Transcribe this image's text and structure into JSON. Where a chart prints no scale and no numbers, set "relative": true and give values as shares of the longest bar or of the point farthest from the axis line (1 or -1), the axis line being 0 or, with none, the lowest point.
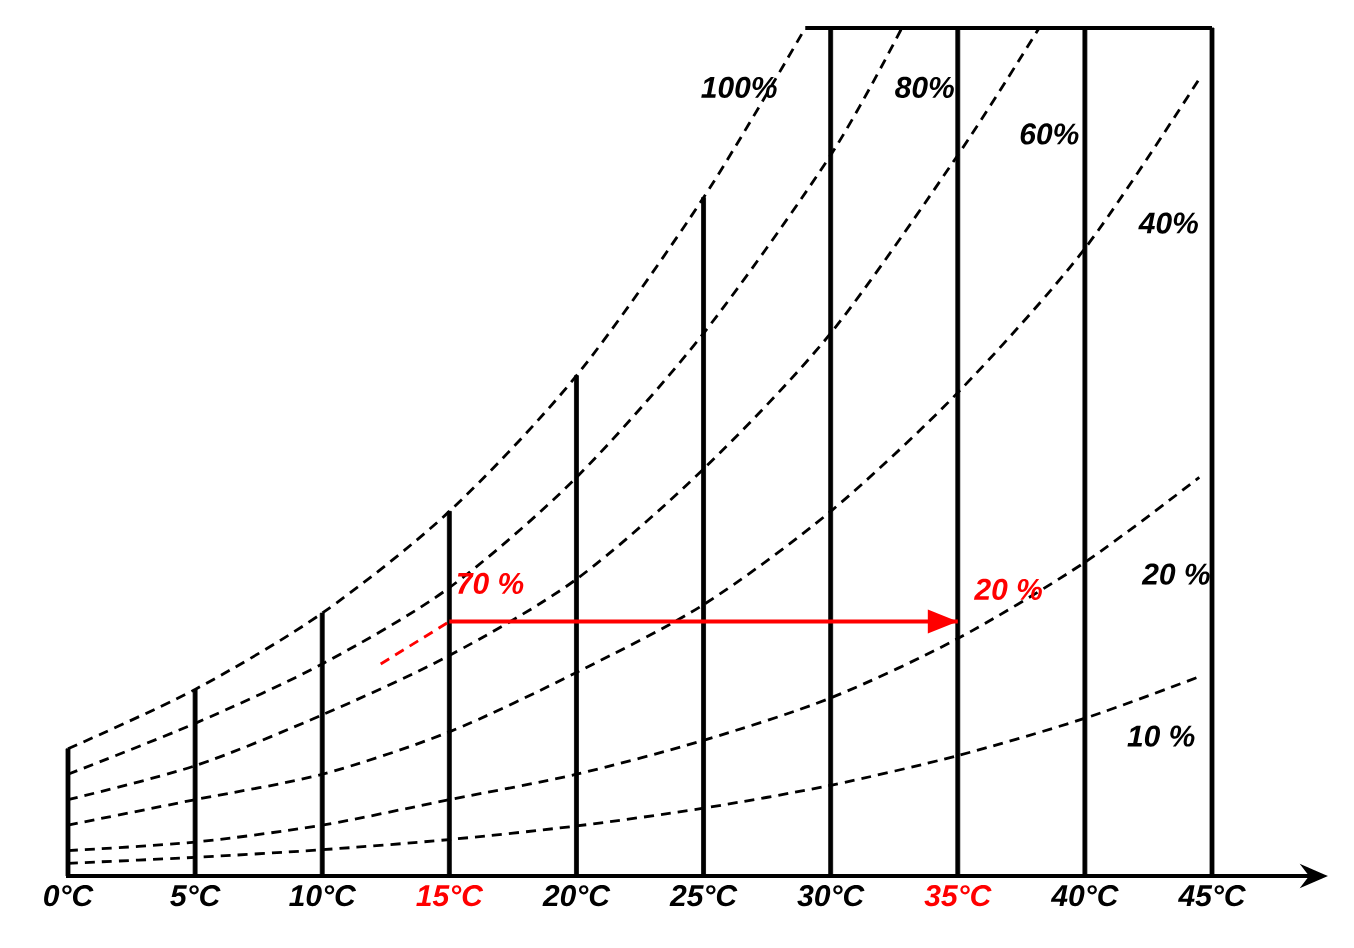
{
  "chart_data": {
    "type": "line",
    "relative": true,
    "xlim": [
      0,
      45
    ],
    "xticks": [
      {
        "value": 0,
        "label": "0°C"
      },
      {
        "value": 5,
        "label": "5°C"
      },
      {
        "value": 10,
        "label": "10°C"
      },
      {
        "value": 15,
        "label": "15°C"
      },
      {
        "value": 20,
        "label": "20°C"
      },
      {
        "value": 25,
        "label": "25°C"
      },
      {
        "value": 30,
        "label": "30°C"
      },
      {
        "value": 35,
        "label": "35°C"
      },
      {
        "value": 40,
        "label": "40°C"
      },
      {
        "value": 45,
        "label": "45°C"
      }
    ],
    "series": [
      {
        "type": "bar",
        "color": "#000000",
        "x": [
          0,
          5,
          10,
          15,
          20,
          25,
          30,
          35,
          40,
          45
        ],
        "values": [
          0.15,
          0.22,
          0.31,
          0.43,
          0.59,
          0.8,
          1,
          1,
          1,
          1
        ]
      },
      {
        "name": "100%",
        "color": "#000000",
        "line_style": "dashed",
        "x": [
          0,
          5,
          10,
          15,
          20,
          25,
          29
        ],
        "values": [
          0.15,
          0.22,
          0.31,
          0.43,
          0.59,
          0.8,
          1
        ]
      },
      {
        "name": "80%",
        "color": "#000000",
        "line_style": "dashed",
        "x": [
          0,
          5,
          10,
          15,
          20,
          25,
          30,
          32.8
        ],
        "values": [
          0.12,
          0.18,
          0.25,
          0.34,
          0.47,
          0.64,
          0.85,
          1
        ]
      },
      {
        "name": "60%",
        "color": "#000000",
        "line_style": "dashed",
        "x": [
          0,
          5,
          10,
          15,
          20,
          25,
          30,
          35,
          38.2
        ],
        "values": [
          0.09,
          0.13,
          0.19,
          0.26,
          0.35,
          0.48,
          0.64,
          0.85,
          1
        ]
      },
      {
        "name": "40%",
        "color": "#000000",
        "line_style": "dashed",
        "x": [
          0,
          5,
          10,
          15,
          20,
          25,
          30,
          35,
          40,
          44.5
        ],
        "values": [
          0.06,
          0.09,
          0.12,
          0.17,
          0.24,
          0.32,
          0.43,
          0.57,
          0.74,
          0.94
        ]
      },
      {
        "name": "20 %",
        "color": "#000000",
        "line_style": "dashed",
        "x": [
          0,
          5,
          10,
          15,
          20,
          25,
          30,
          35,
          40,
          44.5
        ],
        "values": [
          0.03,
          0.04,
          0.06,
          0.09,
          0.12,
          0.16,
          0.21,
          0.28,
          0.37,
          0.47
        ]
      },
      {
        "name": "10 %",
        "color": "#000000",
        "line_style": "dashed",
        "x": [
          0,
          5,
          10,
          15,
          20,
          25,
          30,
          35,
          40,
          44.5
        ],
        "values": [
          0.015,
          0.022,
          0.031,
          0.043,
          0.059,
          0.08,
          0.107,
          0.142,
          0.186,
          0.235
        ]
      },
      {
        "name": "70 %",
        "color": "#ff0000",
        "line_style": "dashed",
        "x": [
          12.3,
          15
        ],
        "values": [
          0.25,
          0.3
        ]
      },
      {
        "name": "20 %",
        "color": "#ff0000",
        "line_style": "solid",
        "x": [
          15,
          35
        ],
        "values": [
          0.3,
          0.3
        ]
      }
    ],
    "ref_lines": [
      {
        "axis": "y",
        "value": 1
      }
    ]
  }
}
